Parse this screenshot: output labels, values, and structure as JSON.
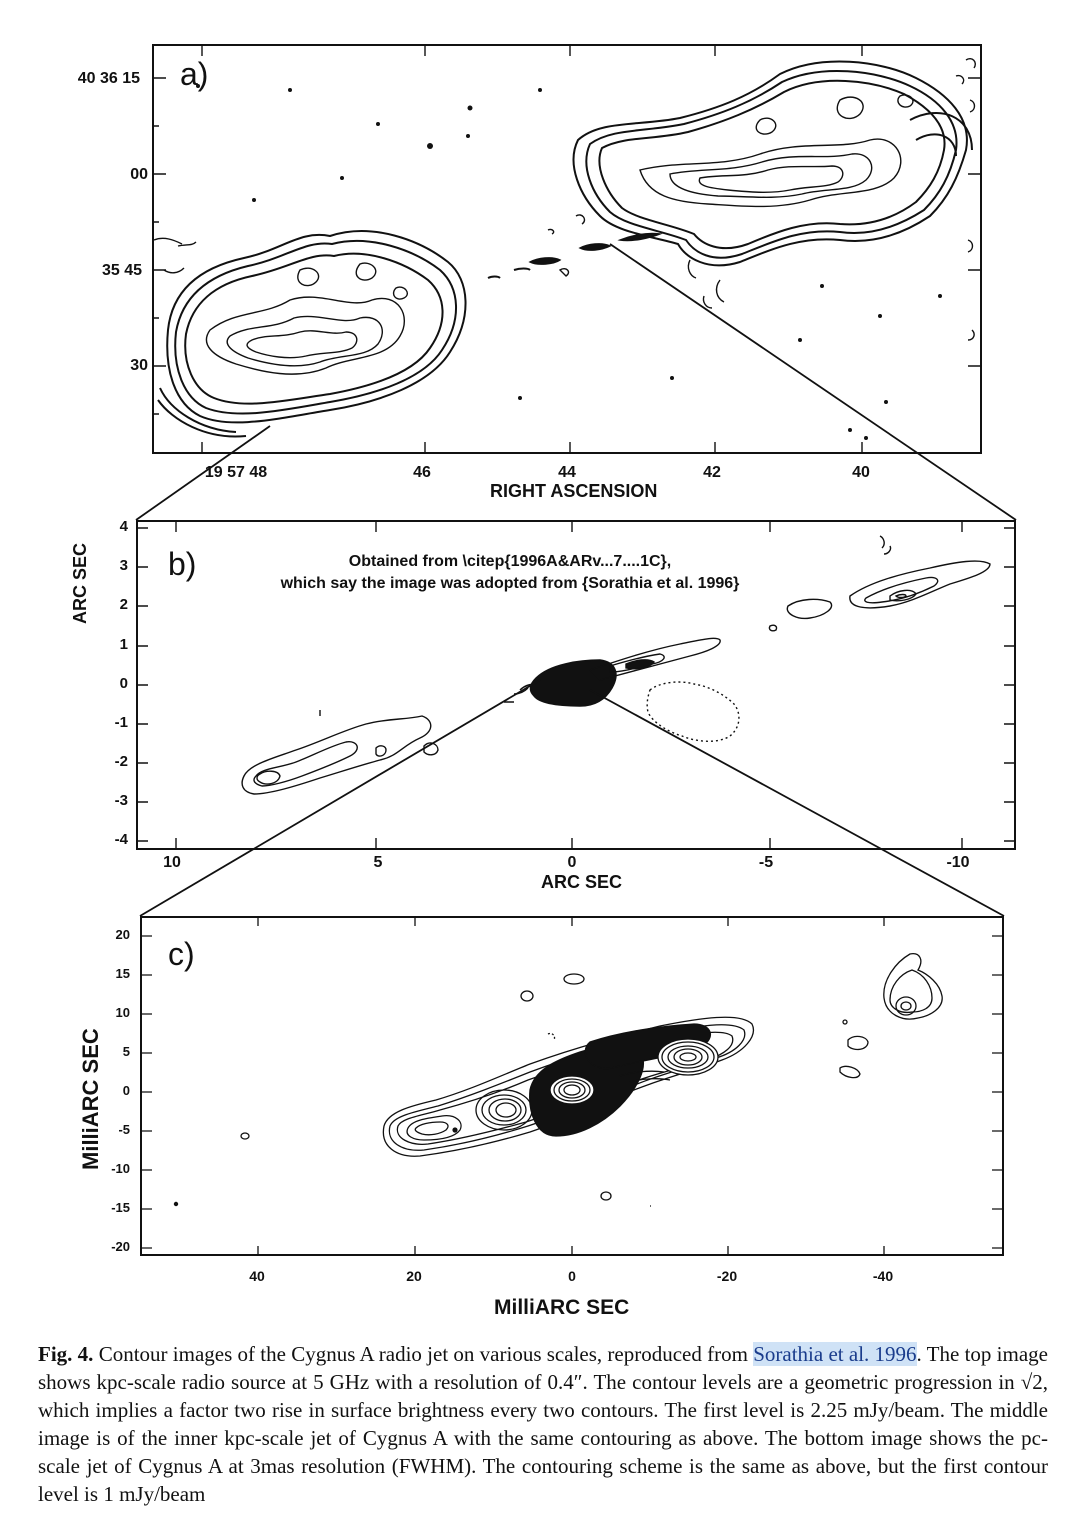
{
  "figure": {
    "panel_a": {
      "letter": "a)",
      "dec_ticks": [
        "40 36 15",
        "00",
        "35 45",
        "30"
      ],
      "ra_ticks": [
        "19 57 48",
        "46",
        "44",
        "42",
        "40"
      ],
      "ra_axis_title": "RIGHT ASCENSION"
    },
    "panel_b": {
      "letter": "b)",
      "y_ticks": [
        "4",
        "3",
        "2",
        "1",
        "0",
        "-1",
        "-2",
        "-3",
        "-4"
      ],
      "x_ticks": [
        "10",
        "5",
        "0",
        "-5",
        "-10"
      ],
      "x_axis_title": "ARC SEC",
      "y_axis_title": "ARC SEC",
      "note_line1": "Obtained from \\citep{1996A&ARv...7....1C},",
      "note_line2": "which say the image was adopted from {Sorathia et al. 1996}"
    },
    "panel_c": {
      "letter": "c)",
      "y_ticks": [
        "20",
        "15",
        "10",
        "5",
        "0",
        "-5",
        "-10",
        "-15",
        "-20"
      ],
      "x_ticks": [
        "40",
        "20",
        "0",
        "-20",
        "-40"
      ],
      "x_axis_title": "MilliARC SEC",
      "y_axis_title": "MilliARC SEC"
    }
  },
  "caption": {
    "fig_label": "Fig. 4.",
    "text_before_ref": " Contour images of the Cygnus A radio jet on various scales, reproduced from ",
    "ref_text": "Sorathia et al. 1996",
    "text_after_ref": ". The top image shows kpc-scale radio source at 5 GHz with a resolution of 0.4″. The contour levels are a geometric progression in √2, which implies a factor two rise in surface brightness every two contours. The first level is 2.25 mJy/beam. The middle image is of the inner kpc-scale jet of Cygnus A with the same contouring as above. The bottom image shows the pc-scale jet of Cygnus A at 3mas resolution (FWHM). The contouring scheme is the same as above, but the first contour level is 1 mJy/beam"
  }
}
